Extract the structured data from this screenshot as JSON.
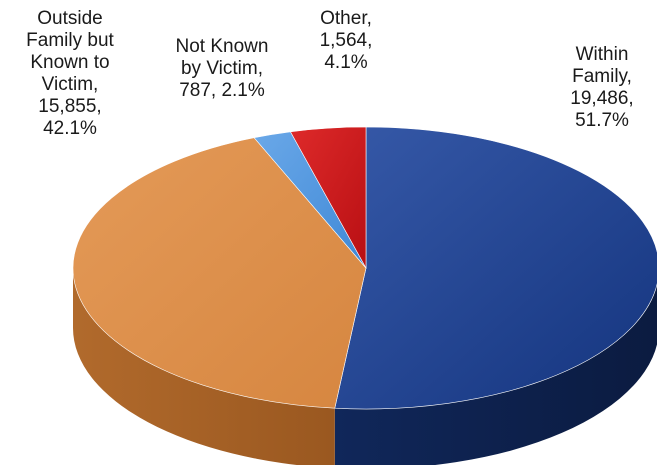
{
  "chart_data": {
    "type": "pie",
    "title": "",
    "slices": [
      {
        "name": "Within Family",
        "value": 19486,
        "percent": 51.7,
        "label": "Within\nFamily,\n19,486,\n51.7%",
        "color": "#1b3d8e"
      },
      {
        "name": "Outside Family but Known to Victim",
        "value": 15855,
        "percent": 42.1,
        "label": "Outside\nFamily but\nKnown to\nVictim,\n15,855,\n42.1%",
        "color": "#dc8a47"
      },
      {
        "name": "Not Known by Victim",
        "value": 787,
        "percent": 2.1,
        "label": "Not Known\nby Victim,\n787, 2.1%",
        "color": "#4f96df"
      },
      {
        "name": "Other",
        "value": 1564,
        "percent": 4.1,
        "label": "Other,\n1,564,\n4.1%",
        "color": "#c8141a"
      }
    ],
    "style": "3d",
    "legend": "none"
  }
}
